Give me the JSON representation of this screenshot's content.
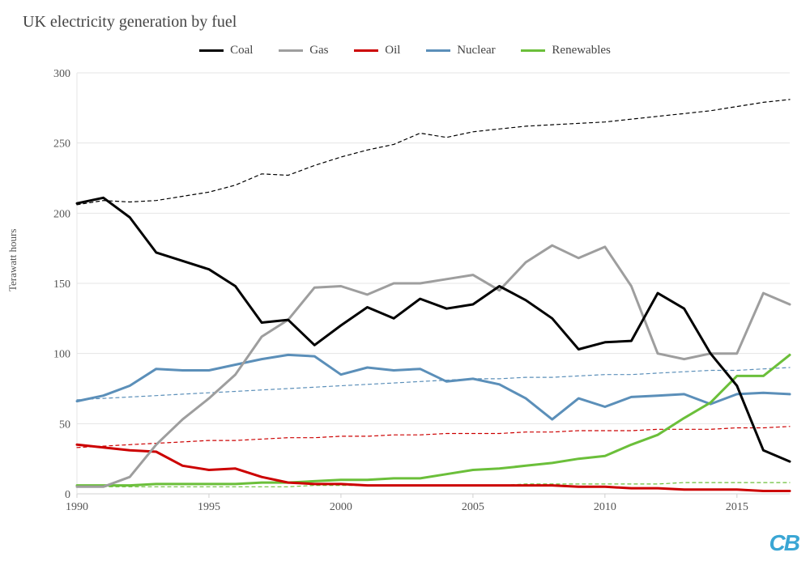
{
  "title": "UK electricity generation by fuel",
  "ylabel": "Terawatt hours",
  "watermark": "CB",
  "chart": {
    "type": "line",
    "background_color": "#ffffff",
    "grid_color": "#e5e5e5",
    "axis_color": "#d0d0d0",
    "x": {
      "min": 1990,
      "max": 2017,
      "tick_step": 5,
      "ticks": [
        1990,
        1995,
        2000,
        2005,
        2010,
        2015
      ]
    },
    "y": {
      "min": 0,
      "max": 300,
      "tick_step": 50,
      "ticks": [
        0,
        50,
        100,
        150,
        200,
        250,
        300
      ]
    },
    "label_fontsize": 14,
    "title_fontsize": 20,
    "line_width_solid": 3,
    "line_width_dashed": 1.2,
    "dash_pattern": "4 4",
    "legend": [
      {
        "key": "coal",
        "label": "Coal",
        "color": "#000000"
      },
      {
        "key": "gas",
        "label": "Gas",
        "color": "#9e9e9e"
      },
      {
        "key": "oil",
        "label": "Oil",
        "color": "#cc0000"
      },
      {
        "key": "nuclear",
        "label": "Nuclear",
        "color": "#5b8fb9"
      },
      {
        "key": "renewables",
        "label": "Renewables",
        "color": "#6bbf3a"
      }
    ],
    "years": [
      1990,
      1991,
      1992,
      1993,
      1994,
      1995,
      1996,
      1997,
      1998,
      1999,
      2000,
      2001,
      2002,
      2003,
      2004,
      2005,
      2006,
      2007,
      2008,
      2009,
      2010,
      2011,
      2012,
      2013,
      2014,
      2015,
      2016,
      2017
    ],
    "series": {
      "coal": {
        "color": "#000000",
        "dashed": false,
        "values": [
          207,
          211,
          197,
          172,
          166,
          160,
          148,
          122,
          124,
          106,
          120,
          133,
          125,
          139,
          132,
          135,
          148,
          138,
          125,
          103,
          108,
          109,
          143,
          132,
          100,
          77,
          31,
          23
        ]
      },
      "gas": {
        "color": "#9e9e9e",
        "dashed": false,
        "values": [
          5,
          5,
          12,
          35,
          53,
          68,
          85,
          112,
          124,
          147,
          148,
          142,
          150,
          150,
          153,
          156,
          145,
          165,
          177,
          168,
          176,
          148,
          100,
          96,
          100,
          100,
          143,
          135
        ]
      },
      "oil": {
        "color": "#cc0000",
        "dashed": false,
        "values": [
          35,
          33,
          31,
          30,
          20,
          17,
          18,
          12,
          8,
          7,
          7,
          6,
          6,
          6,
          6,
          6,
          6,
          6,
          6,
          5,
          5,
          4,
          4,
          3,
          3,
          3,
          2,
          2
        ]
      },
      "nuclear": {
        "color": "#5b8fb9",
        "dashed": false,
        "values": [
          66,
          70,
          77,
          89,
          88,
          88,
          92,
          96,
          99,
          98,
          85,
          90,
          88,
          89,
          80,
          82,
          78,
          68,
          53,
          68,
          62,
          69,
          70,
          71,
          64,
          71,
          72,
          71
        ]
      },
      "renewables": {
        "color": "#6bbf3a",
        "dashed": false,
        "values": [
          6,
          6,
          6,
          7,
          7,
          7,
          7,
          8,
          8,
          9,
          10,
          10,
          11,
          11,
          14,
          17,
          18,
          20,
          22,
          25,
          27,
          35,
          42,
          54,
          65,
          84,
          84,
          99
        ]
      },
      "coal_dash": {
        "color": "#000000",
        "dashed": true,
        "values": [
          206,
          209,
          208,
          209,
          212,
          215,
          220,
          228,
          227,
          234,
          240,
          245,
          249,
          257,
          254,
          258,
          260,
          262,
          263,
          264,
          265,
          267,
          269,
          271,
          273,
          276,
          279,
          281
        ]
      },
      "nuclear_dash": {
        "color": "#5b8fb9",
        "dashed": true,
        "values": [
          67,
          68,
          69,
          70,
          71,
          72,
          73,
          74,
          75,
          76,
          77,
          78,
          79,
          80,
          81,
          82,
          82,
          83,
          83,
          84,
          85,
          85,
          86,
          87,
          88,
          88,
          89,
          90
        ]
      },
      "oil_dash": {
        "color": "#cc0000",
        "dashed": true,
        "values": [
          33,
          34,
          35,
          36,
          37,
          38,
          38,
          39,
          40,
          40,
          41,
          41,
          42,
          42,
          43,
          43,
          43,
          44,
          44,
          45,
          45,
          45,
          46,
          46,
          46,
          47,
          47,
          48
        ]
      },
      "renewables_dash": {
        "color": "#6bbf3a",
        "dashed": true,
        "values": [
          5,
          5,
          5,
          5,
          5,
          5,
          5,
          5,
          5,
          6,
          6,
          6,
          6,
          6,
          6,
          6,
          6,
          7,
          7,
          7,
          7,
          7,
          7,
          8,
          8,
          8,
          8,
          8
        ]
      }
    }
  }
}
